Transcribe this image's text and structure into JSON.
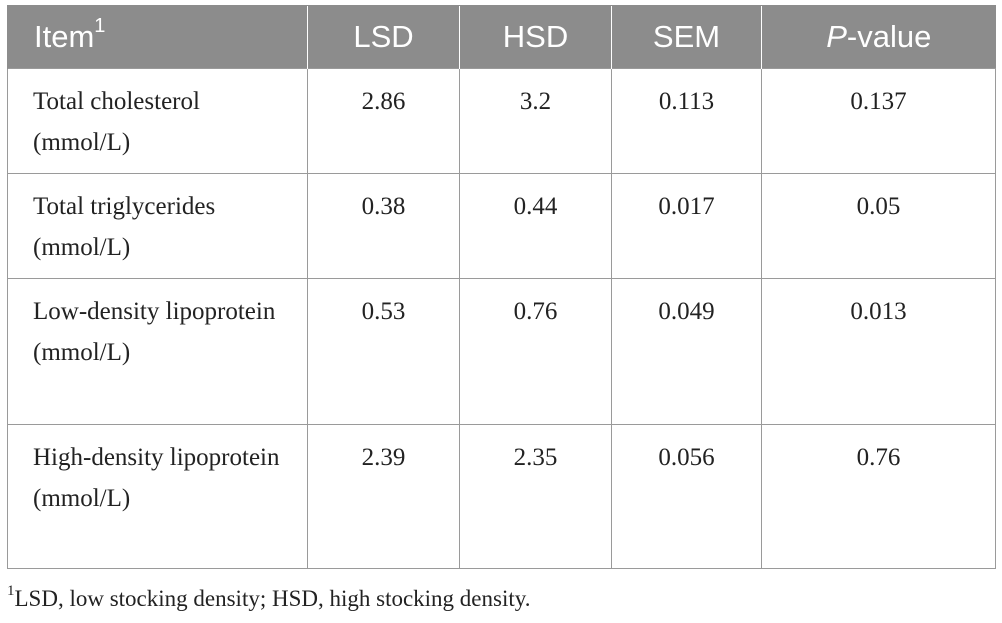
{
  "table": {
    "header": {
      "item": "Item",
      "item_sup": "1",
      "lsd": "LSD",
      "hsd": "HSD",
      "sem": "SEM",
      "p_italic": "P",
      "p_rest": "-value"
    },
    "rows": [
      {
        "item": "Total cholesterol (mmol/L)",
        "lsd": "2.86",
        "hsd": "3.2",
        "sem": "0.113",
        "p": "0.137"
      },
      {
        "item": "Total triglycerides (mmol/L)",
        "lsd": "0.38",
        "hsd": "0.44",
        "sem": "0.017",
        "p": "0.05"
      },
      {
        "item": "Low-density lipoprotein (mmol/L)",
        "lsd": "0.53",
        "hsd": "0.76",
        "sem": "0.049",
        "p": "0.013"
      },
      {
        "item": "High-density lipoprotein (mmol/L)",
        "lsd": "2.39",
        "hsd": "2.35",
        "sem": "0.056",
        "p": "0.76"
      }
    ]
  },
  "footnote": {
    "marker": "1",
    "text": "LSD, low stocking density; HSD, high stocking density."
  },
  "colors": {
    "header_bg": "#8c8c8c",
    "header_text": "#ffffff",
    "border": "#9a9a9a"
  }
}
